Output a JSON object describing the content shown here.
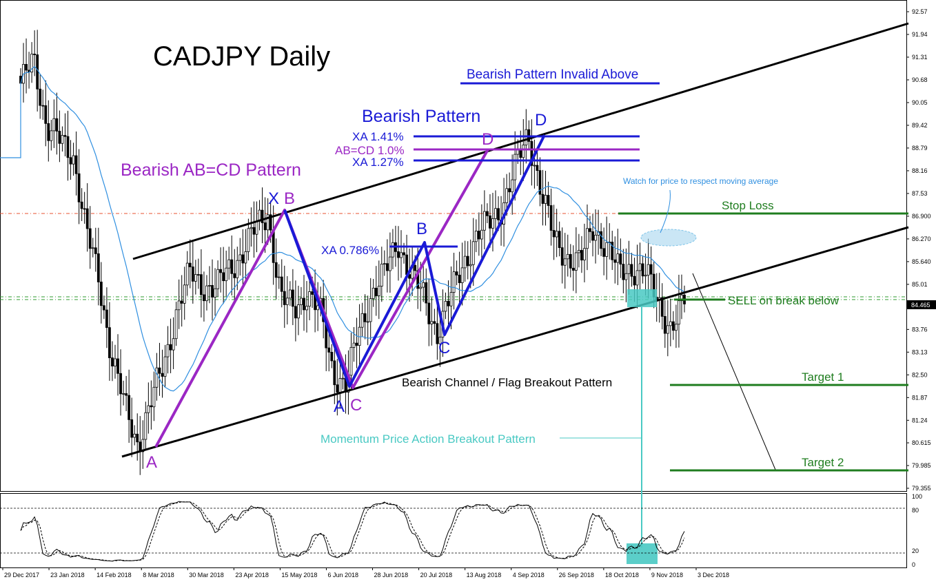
{
  "chart_data": {
    "type": "candlestick",
    "title": "CADJPY Daily",
    "price_axis": {
      "ticks": [
        "92.57",
        "91.94",
        "91.31",
        "90.68",
        "90.05",
        "89.42",
        "88.79",
        "88.16",
        "87.53",
        "86.900",
        "86.270",
        "85.640",
        "85.01",
        "84.38",
        "83.76",
        "83.13",
        "82.50",
        "81.87",
        "81.24",
        "80.615",
        "79.985",
        "79.355"
      ],
      "range": [
        79.355,
        92.57
      ],
      "current_price": "84.465"
    },
    "time_axis": {
      "ticks": [
        "29 Dec 2017",
        "23 Jan 2018",
        "14 Feb 2018",
        "8 Mar 2018",
        "30 Mar 2018",
        "23 Apr 2018",
        "15 May 2018",
        "6 Jun 2018",
        "28 Jun 2018",
        "20 Jul 2018",
        "13 Aug 2018",
        "4 Sep 2018",
        "26 Sep 2018",
        "18 Oct 2018",
        "9 Nov 2018",
        "3 Dec 2018"
      ]
    },
    "price_path": [
      [
        "29 Dec 2017",
        90.4
      ],
      [
        "5 Jan 2018",
        91.4
      ],
      [
        "12 Jan 2018",
        89.3
      ],
      [
        "23 Jan 2018",
        89.0
      ],
      [
        "31 Jan 2018",
        88.7
      ],
      [
        "7 Feb 2018",
        86.5
      ],
      [
        "14 Feb 2018",
        85.2
      ],
      [
        "22 Feb 2018",
        83.0
      ],
      [
        "1 Mar 2018",
        81.6
      ],
      [
        "8 Mar 2018",
        80.6
      ],
      [
        "15 Mar 2018",
        81.7
      ],
      [
        "22 Mar 2018",
        82.8
      ],
      [
        "30 Mar 2018",
        84.3
      ],
      [
        "9 Apr 2018",
        85.3
      ],
      [
        "16 Apr 2018",
        85.0
      ],
      [
        "23 Apr 2018",
        84.9
      ],
      [
        "1 May 2018",
        85.4
      ],
      [
        "8 May 2018",
        85.9
      ],
      [
        "15 May 2018",
        86.5
      ],
      [
        "18 May 2018",
        87.0
      ],
      [
        "25 May 2018",
        84.6
      ],
      [
        "1 Jun 2018",
        84.3
      ],
      [
        "6 Jun 2018",
        84.8
      ],
      [
        "13 Jun 2018",
        84.2
      ],
      [
        "20 Jun 2018",
        82.6
      ],
      [
        "27 Jun 2018",
        82.2
      ],
      [
        "4 Jul 2018",
        83.7
      ],
      [
        "11 Jul 2018",
        84.8
      ],
      [
        "18 Jul 2018",
        85.3
      ],
      [
        "23 Jul 2018",
        86.2
      ],
      [
        "30 Jul 2018",
        85.3
      ],
      [
        "6 Aug 2018",
        84.6
      ],
      [
        "13 Aug 2018",
        83.7
      ],
      [
        "20 Aug 2018",
        84.6
      ],
      [
        "27 Aug 2018",
        85.6
      ],
      [
        "3 Sep 2018",
        86.3
      ],
      [
        "10 Sep 2018",
        86.7
      ],
      [
        "17 Sep 2018",
        87.2
      ],
      [
        "24 Sep 2018",
        88.2
      ],
      [
        "1 Oct 2018",
        89.2
      ],
      [
        "8 Oct 2018",
        87.6
      ],
      [
        "15 Oct 2018",
        86.2
      ],
      [
        "22 Oct 2018",
        85.8
      ],
      [
        "29 Oct 2018",
        85.6
      ],
      [
        "5 Nov 2018",
        86.6
      ],
      [
        "12 Nov 2018",
        86.1
      ],
      [
        "19 Nov 2018",
        85.3
      ],
      [
        "26 Nov 2018",
        85.5
      ],
      [
        "3 Dec 2018",
        85.3
      ],
      [
        "7 Dec 2018",
        84.5
      ],
      [
        "10 Dec 2018",
        83.8
      ],
      [
        "14 Dec 2018",
        84.465
      ]
    ],
    "annotations": {
      "bearish_invalid": "Bearish Pattern Invalid Above",
      "bearish_pattern": "Bearish Pattern",
      "abcd_pattern": "Bearish AB=CD Pattern",
      "xa_141": "XA 1.41%",
      "abcd_10": "AB=CD 1.0%",
      "xa_127": "XA 1.27%",
      "xa_0786": "XA 0.786%",
      "watch_ma": "Watch for price to respect moving average",
      "stop_loss": "Stop Loss",
      "sell": "SELL on break below",
      "target1": "Target 1",
      "target2": "Target 2",
      "channel": "Bearish Channel / Flag Breakout Pattern",
      "momentum": "Momentum Price Action Breakout Pattern",
      "label_x": "X",
      "label_b_blue": "B",
      "label_b_purple": "B",
      "label_a_purple": "A",
      "label_a_blue": "A",
      "label_c_purple": "C",
      "label_c_blue": "C",
      "label_b2_blue": "B",
      "label_d_purple": "D",
      "label_d_blue": "D"
    },
    "oscillator": {
      "levels": [
        "100",
        "80",
        "20",
        "0"
      ]
    },
    "colors": {
      "blue_pattern": "#1a1ad6",
      "purple_pattern": "#9b27c4",
      "trade_green": "#1f7d1f",
      "moving_average": "#2f8fe0",
      "momentum": "#49c9c3",
      "channel": "#000000"
    }
  }
}
